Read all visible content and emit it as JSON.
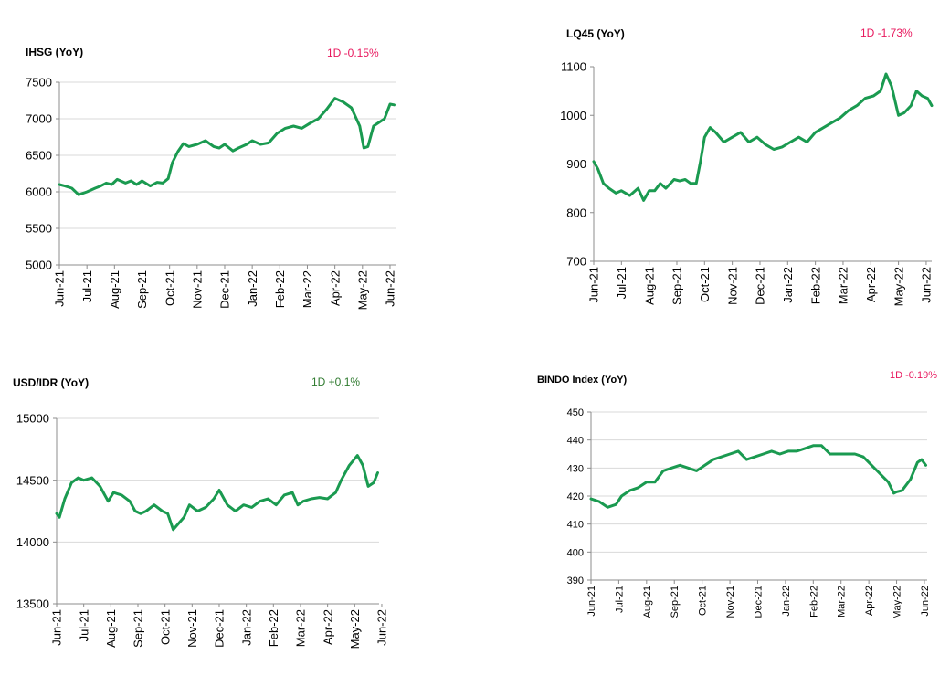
{
  "colors": {
    "line": "#1a9a50",
    "negative": "#e8175d",
    "positive": "#2f7a2f",
    "grid": "#d9d9d9",
    "axis": "#8c8c8c"
  },
  "chart_data": [
    {
      "type": "line",
      "title": "IHSG (YoY)",
      "change": "1D -0.15%",
      "change_sign": "negative",
      "ylim": [
        5000,
        7500
      ],
      "yticks": [
        "7500",
        "7000",
        "6500",
        "6000",
        "5500",
        "5000"
      ],
      "months": [
        "Jun-21",
        "Jul-21",
        "Aug-21",
        "Sep-21",
        "Oct-21",
        "Nov-21",
        "Dec-21",
        "Jan-22",
        "Feb-22",
        "Mar-22",
        "Apr-22",
        "May-22",
        "Jun-22"
      ],
      "grid": true,
      "series": [
        {
          "x": [
            0,
            0.2,
            0.45,
            0.7,
            1.0,
            1.3,
            1.5,
            1.7,
            1.9,
            2.1,
            2.4,
            2.6,
            2.8,
            3.0,
            3.3,
            3.55,
            3.75,
            3.95,
            4.1,
            4.3,
            4.5,
            4.7,
            5.0,
            5.3,
            5.6,
            5.8,
            6.0,
            6.3,
            6.5,
            6.8,
            7.0,
            7.3,
            7.6,
            7.9,
            8.2,
            8.5,
            8.8,
            9.1,
            9.4,
            9.7,
            10.0,
            10.3,
            10.6,
            10.9,
            11.05,
            11.2,
            11.4,
            11.6,
            11.8,
            12.0,
            12.15
          ],
          "y": [
            6100,
            6080,
            6050,
            5960,
            6000,
            6050,
            6080,
            6120,
            6100,
            6170,
            6120,
            6150,
            6100,
            6150,
            6080,
            6130,
            6120,
            6180,
            6400,
            6550,
            6660,
            6620,
            6650,
            6700,
            6620,
            6600,
            6650,
            6560,
            6600,
            6650,
            6700,
            6650,
            6670,
            6800,
            6870,
            6900,
            6870,
            6940,
            7000,
            7130,
            7280,
            7230,
            7150,
            6900,
            6600,
            6620,
            6900,
            6950,
            7000,
            7200,
            7190
          ]
        }
      ]
    },
    {
      "type": "line",
      "title": "LQ45 (YoY)",
      "change": "1D -1.73%",
      "change_sign": "negative",
      "ylim": [
        700,
        1100
      ],
      "yticks": [
        "1100",
        "1000",
        "900",
        "800",
        "700"
      ],
      "months": [
        "Jun-21",
        "Jul-21",
        "Aug-21",
        "Sep-21",
        "Oct-21",
        "Nov-21",
        "Dec-21",
        "Jan-22",
        "Feb-22",
        "Mar-22",
        "Apr-22",
        "May-22",
        "Jun-22"
      ],
      "grid": false,
      "series": [
        {
          "x": [
            0,
            0.15,
            0.35,
            0.55,
            0.8,
            1.0,
            1.3,
            1.6,
            1.8,
            2.0,
            2.2,
            2.4,
            2.6,
            2.9,
            3.1,
            3.3,
            3.5,
            3.7,
            3.85,
            4.0,
            4.2,
            4.4,
            4.7,
            5.0,
            5.3,
            5.6,
            5.9,
            6.2,
            6.5,
            6.8,
            7.1,
            7.4,
            7.7,
            8.0,
            8.3,
            8.6,
            8.9,
            9.2,
            9.5,
            9.8,
            10.1,
            10.35,
            10.55,
            10.75,
            11.0,
            11.2,
            11.45,
            11.65,
            11.85,
            12.05,
            12.2
          ],
          "y": [
            905,
            890,
            860,
            850,
            840,
            845,
            835,
            850,
            825,
            845,
            845,
            860,
            850,
            868,
            865,
            868,
            860,
            860,
            905,
            955,
            975,
            965,
            945,
            955,
            965,
            945,
            955,
            940,
            930,
            935,
            945,
            955,
            945,
            965,
            975,
            985,
            995,
            1010,
            1020,
            1035,
            1040,
            1050,
            1085,
            1060,
            1000,
            1005,
            1020,
            1050,
            1040,
            1035,
            1020
          ]
        }
      ]
    },
    {
      "type": "line",
      "title": "USD/IDR  (YoY)",
      "change": "1D +0.1%",
      "change_sign": "positive",
      "ylim": [
        13500,
        15000
      ],
      "yticks": [
        "15000",
        "14500",
        "14000",
        "13500"
      ],
      "months": [
        "Jun-21",
        "Jul-21",
        "Aug-21",
        "Sep-21",
        "Oct-21",
        "Nov-21",
        "Dec-21",
        "Jan-22",
        "Feb-22",
        "Mar-22",
        "Apr-22",
        "May-22",
        "Jun-22"
      ],
      "grid": true,
      "series": [
        {
          "x": [
            0,
            0.1,
            0.3,
            0.55,
            0.8,
            1.0,
            1.3,
            1.6,
            1.9,
            2.1,
            2.4,
            2.7,
            2.9,
            3.1,
            3.3,
            3.6,
            3.9,
            4.1,
            4.3,
            4.5,
            4.7,
            4.9,
            5.2,
            5.5,
            5.8,
            6.0,
            6.3,
            6.6,
            6.9,
            7.2,
            7.5,
            7.8,
            8.1,
            8.4,
            8.7,
            8.9,
            9.1,
            9.4,
            9.7,
            10.0,
            10.3,
            10.5,
            10.8,
            11.1,
            11.3,
            11.5,
            11.7,
            11.85
          ],
          "y": [
            14230,
            14200,
            14350,
            14480,
            14520,
            14500,
            14520,
            14450,
            14330,
            14400,
            14380,
            14330,
            14250,
            14230,
            14250,
            14300,
            14250,
            14230,
            14100,
            14150,
            14200,
            14300,
            14250,
            14280,
            14350,
            14420,
            14300,
            14250,
            14300,
            14280,
            14330,
            14350,
            14300,
            14380,
            14400,
            14300,
            14330,
            14350,
            14360,
            14350,
            14400,
            14500,
            14620,
            14700,
            14620,
            14450,
            14480,
            14560
          ]
        }
      ]
    },
    {
      "type": "line",
      "title": "BINDO Index (YoY)",
      "change": "1D -0.19%",
      "change_sign": "negative",
      "ylim": [
        390,
        450
      ],
      "yticks": [
        "450",
        "440",
        "430",
        "420",
        "410",
        "400",
        "390"
      ],
      "months": [
        "Jun-21",
        "Jul-21",
        "Aug-21",
        "Sep-21",
        "Oct-21",
        "Nov-21",
        "Dec-21",
        "Jan-22",
        "Feb-22",
        "Mar-22",
        "Apr-22",
        "May-22",
        "Jun-22"
      ],
      "grid": true,
      "series": [
        {
          "x": [
            0,
            0.3,
            0.6,
            0.9,
            1.1,
            1.4,
            1.7,
            2.0,
            2.3,
            2.6,
            2.9,
            3.2,
            3.5,
            3.8,
            4.1,
            4.4,
            4.7,
            5.0,
            5.3,
            5.6,
            5.9,
            6.2,
            6.5,
            6.8,
            7.1,
            7.4,
            7.7,
            8.0,
            8.3,
            8.6,
            8.9,
            9.2,
            9.5,
            9.8,
            10.1,
            10.4,
            10.7,
            10.9,
            11.0,
            11.2,
            11.5,
            11.75,
            11.9,
            12.05
          ],
          "y": [
            419,
            418,
            416,
            417,
            420,
            422,
            423,
            425,
            425,
            429,
            430,
            431,
            430,
            429,
            431,
            433,
            434,
            435,
            436,
            433,
            434,
            435,
            436,
            435,
            436,
            436,
            437,
            438,
            438,
            435,
            435,
            435,
            435,
            434,
            431,
            428,
            425,
            421,
            421.5,
            422,
            426,
            432,
            433,
            431
          ]
        }
      ]
    }
  ]
}
